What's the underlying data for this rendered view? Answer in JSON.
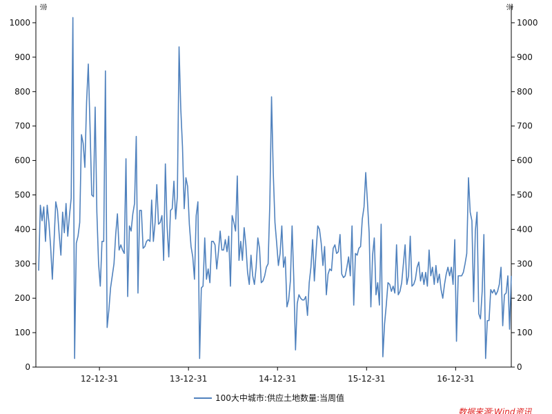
{
  "chart_data": {
    "type": "line",
    "unit_left": "宗",
    "unit_right": "宗",
    "ylim": [
      0,
      1050
    ],
    "y_ticks": [
      "0",
      "100",
      "200",
      "300",
      "400",
      "500",
      "600",
      "700",
      "800",
      "900",
      "1000"
    ],
    "x_tick_labels": [
      "12-12-31",
      "13-12-31",
      "14-12-31",
      "15-12-31",
      "16-12-31"
    ],
    "grid": false,
    "legend_position": "bottom-center",
    "source": "数据来源:Wind资讯",
    "colors": {
      "series": "#4f81bd",
      "axis": "#000000",
      "source": "#e02020"
    },
    "series": [
      {
        "name": "100大中城市:供应土地数量:当周值",
        "values": [
          280,
          470,
          425,
          465,
          365,
          470,
          420,
          350,
          255,
          365,
          480,
          455,
          385,
          325,
          450,
          390,
          475,
          380,
          440,
          490,
          1015,
          25,
          360,
          380,
          420,
          675,
          650,
          580,
          770,
          880,
          700,
          500,
          495,
          755,
          450,
          300,
          235,
          365,
          365,
          860,
          115,
          165,
          230,
          265,
          300,
          385,
          445,
          340,
          355,
          340,
          330,
          605,
          205,
          410,
          395,
          445,
          475,
          670,
          215,
          455,
          455,
          345,
          350,
          365,
          370,
          365,
          485,
          365,
          420,
          530,
          415,
          420,
          440,
          310,
          590,
          410,
          320,
          455,
          460,
          540,
          430,
          495,
          930,
          750,
          640,
          460,
          550,
          525,
          415,
          350,
          320,
          255,
          440,
          480,
          25,
          230,
          235,
          375,
          255,
          285,
          245,
          365,
          365,
          355,
          285,
          335,
          395,
          340,
          340,
          370,
          335,
          380,
          235,
          440,
          420,
          395,
          555,
          310,
          365,
          310,
          405,
          355,
          275,
          240,
          325,
          265,
          240,
          290,
          375,
          345,
          245,
          250,
          265,
          290,
          300,
          475,
          785,
          565,
          420,
          360,
          295,
          330,
          410,
          290,
          320,
          175,
          195,
          250,
          410,
          255,
          50,
          185,
          210,
          200,
          195,
          195,
          205,
          150,
          245,
          290,
          370,
          250,
          335,
          410,
          400,
          360,
          295,
          350,
          210,
          270,
          285,
          280,
          345,
          355,
          330,
          335,
          385,
          270,
          260,
          265,
          290,
          320,
          265,
          410,
          180,
          330,
          325,
          345,
          350,
          430,
          465,
          565,
          480,
          390,
          175,
          325,
          375,
          210,
          245,
          180,
          415,
          30,
          125,
          180,
          245,
          240,
          220,
          235,
          215,
          355,
          210,
          220,
          245,
          300,
          355,
          240,
          265,
          380,
          235,
          240,
          255,
          290,
          305,
          250,
          275,
          240,
          275,
          235,
          340,
          265,
          290,
          240,
          295,
          245,
          270,
          225,
          200,
          240,
          270,
          290,
          265,
          290,
          240,
          370,
          75,
          265,
          265,
          265,
          275,
          300,
          330,
          550,
          450,
          425,
          190,
          395,
          450,
          155,
          140,
          220,
          385,
          25,
          135,
          135,
          225,
          215,
          225,
          210,
          220,
          240,
          290,
          120,
          210,
          215,
          265,
          110,
          265
        ]
      }
    ]
  }
}
